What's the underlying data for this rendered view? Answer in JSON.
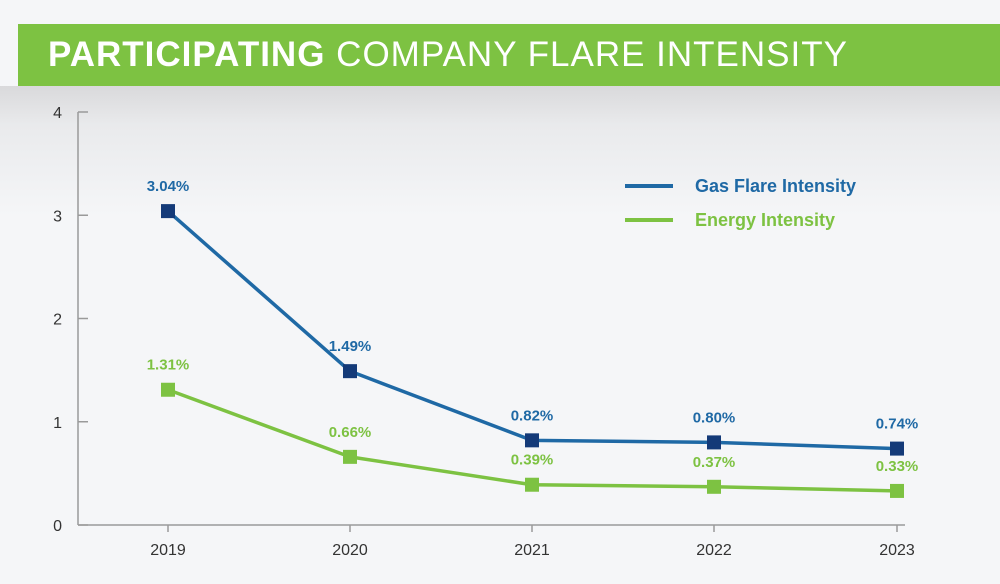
{
  "title": {
    "bold_part": "PARTICIPATING",
    "light_part": "COMPANY FLARE INTENSITY"
  },
  "colors": {
    "banner": "#7dc242",
    "gas_line": "#1f69a5",
    "gas_marker": "#143a78",
    "energy_line": "#7dc242",
    "axis": "#9a9a9a"
  },
  "chart_data": {
    "type": "line",
    "x": [
      "2019",
      "2020",
      "2021",
      "2022",
      "2023"
    ],
    "ylim": [
      0,
      4
    ],
    "yticks": [
      "0",
      "1",
      "2",
      "3",
      "4"
    ],
    "grid": false,
    "legend_position": "top-right",
    "series": [
      {
        "name": "Gas Flare Intensity",
        "values": [
          3.04,
          1.49,
          0.82,
          0.8,
          0.74
        ],
        "labels": [
          "3.04%",
          "1.49%",
          "0.82%",
          "0.80%",
          "0.74%"
        ]
      },
      {
        "name": "Energy Intensity",
        "values": [
          1.31,
          0.66,
          0.39,
          0.37,
          0.33
        ],
        "labels": [
          "1.31%",
          "0.66%",
          "0.39%",
          "0.37%",
          "0.33%"
        ]
      }
    ]
  }
}
